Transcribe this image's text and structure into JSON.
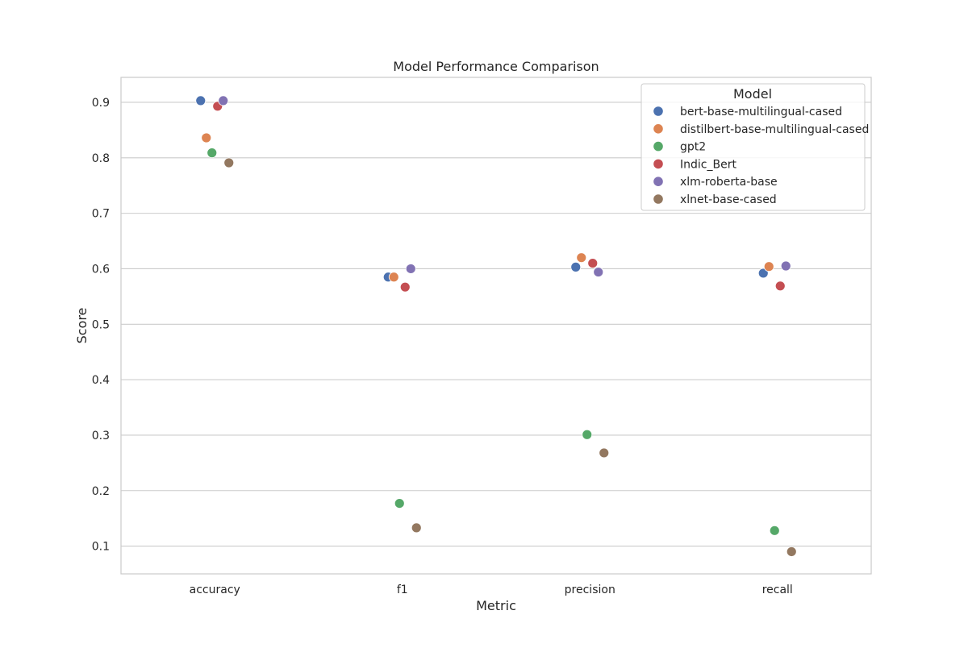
{
  "chart_data": {
    "type": "scatter",
    "title": "Model Performance Comparison",
    "xlabel": "Metric",
    "ylabel": "Score",
    "categories": [
      "accuracy",
      "f1",
      "precision",
      "recall"
    ],
    "ylim": [
      0.05,
      0.945
    ],
    "yticks": [
      0.1,
      0.2,
      0.3,
      0.4,
      0.5,
      0.6,
      0.7,
      0.8,
      0.9
    ],
    "grid": "horizontal",
    "legend": {
      "title": "Model",
      "placement": "top-right"
    },
    "series": [
      {
        "name": "bert-base-multilingual-cased",
        "color": "#4c72b0",
        "values": [
          0.903,
          0.585,
          0.603,
          0.592
        ]
      },
      {
        "name": "distilbert-base-multilingual-cased",
        "color": "#dd8452",
        "values": [
          0.836,
          0.585,
          0.62,
          0.604
        ]
      },
      {
        "name": "gpt2",
        "color": "#55a868",
        "values": [
          0.809,
          0.177,
          0.301,
          0.128
        ]
      },
      {
        "name": "Indic_Bert",
        "color": "#c44e52",
        "values": [
          0.893,
          0.567,
          0.61,
          0.569
        ]
      },
      {
        "name": "xlm-roberta-base",
        "color": "#8172b3",
        "values": [
          0.903,
          0.6,
          0.594,
          0.605
        ]
      },
      {
        "name": "xlnet-base-cased",
        "color": "#937860",
        "values": [
          0.791,
          0.133,
          0.268,
          0.09
        ]
      }
    ]
  }
}
